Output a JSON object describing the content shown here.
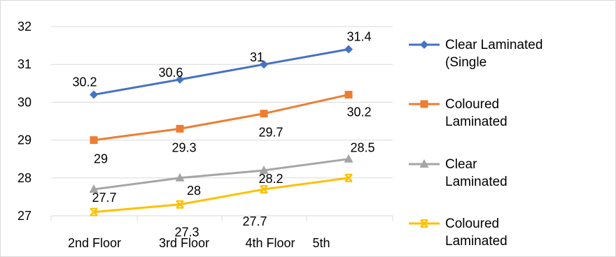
{
  "chart_data": {
    "type": "line",
    "title": "",
    "xlabel": "",
    "ylabel": "",
    "categories": [
      "2nd Floor",
      "3rd Floor",
      "4th Floor",
      "5th"
    ],
    "y_ticks": [
      "32",
      "31",
      "30",
      "29",
      "28",
      "27"
    ],
    "ylim": [
      27,
      32
    ],
    "grid": true,
    "legend_position": "right",
    "series": [
      {
        "name": "Clear Laminated (Single",
        "legend_lines": [
          "Clear Laminated",
          "(Single"
        ],
        "color": "#4472C4",
        "marker": "diamond",
        "values": [
          30.2,
          30.6,
          31.0,
          31.4
        ],
        "labels": [
          "30.2",
          "30.6",
          "31",
          "31.4"
        ]
      },
      {
        "name": "Coloured Laminated",
        "legend_lines": [
          "Coloured",
          "Laminated"
        ],
        "color": "#ED7D31",
        "marker": "square",
        "values": [
          29.0,
          29.3,
          29.7,
          30.2
        ],
        "labels": [
          "29",
          "29.3",
          "29.7",
          "30.2"
        ]
      },
      {
        "name": "Clear Laminated",
        "legend_lines": [
          "Clear",
          "Laminated"
        ],
        "color": "#A5A5A5",
        "marker": "triangle",
        "values": [
          27.7,
          28.0,
          28.2,
          28.5
        ],
        "labels": [
          "27.7",
          "28",
          "28.2",
          "28.5"
        ]
      },
      {
        "name": "Coloured Laminated",
        "legend_lines": [
          "Coloured",
          "Laminated"
        ],
        "color": "#FFC000",
        "marker": "x",
        "values": [
          27.1,
          27.3,
          27.7,
          28.0
        ],
        "labels": [
          "",
          "27.3",
          "27.7",
          ""
        ]
      }
    ]
  }
}
